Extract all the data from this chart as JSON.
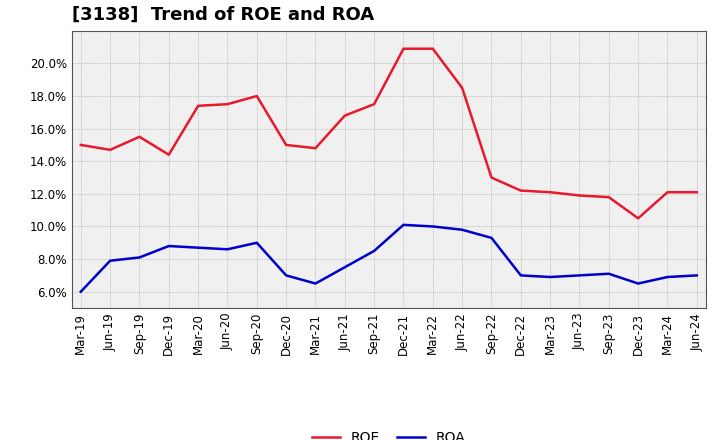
{
  "title": "[3138]  Trend of ROE and ROA",
  "x_labels": [
    "Mar-19",
    "Jun-19",
    "Sep-19",
    "Dec-19",
    "Mar-20",
    "Jun-20",
    "Sep-20",
    "Dec-20",
    "Mar-21",
    "Jun-21",
    "Sep-21",
    "Dec-21",
    "Mar-22",
    "Jun-22",
    "Sep-22",
    "Dec-22",
    "Mar-23",
    "Jun-23",
    "Sep-23",
    "Dec-23",
    "Mar-24",
    "Jun-24"
  ],
  "roe": [
    15.0,
    14.7,
    15.5,
    14.4,
    17.4,
    17.5,
    18.0,
    15.0,
    14.8,
    16.8,
    17.5,
    20.9,
    20.9,
    18.5,
    13.0,
    12.2,
    12.1,
    11.9,
    11.8,
    10.5,
    12.1,
    12.1
  ],
  "roa": [
    6.0,
    7.9,
    8.1,
    8.8,
    8.7,
    8.6,
    9.0,
    7.0,
    6.5,
    7.5,
    8.5,
    10.1,
    10.0,
    9.8,
    9.3,
    7.0,
    6.9,
    7.0,
    7.1,
    6.5,
    6.9,
    7.0
  ],
  "roe_color": "#e8192c",
  "roa_color": "#0000cc",
  "ylim_min": 5.0,
  "ylim_max": 22.0,
  "yticks": [
    6.0,
    8.0,
    10.0,
    12.0,
    14.0,
    16.0,
    18.0,
    20.0
  ],
  "background_color": "#ffffff",
  "plot_bg_color": "#f0f0f0",
  "grid_color": "#888888",
  "title_fontsize": 13,
  "legend_fontsize": 10,
  "tick_fontsize": 8.5,
  "line_width": 1.8
}
